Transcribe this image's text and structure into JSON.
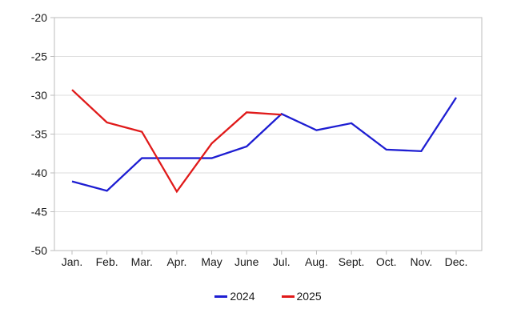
{
  "chart_data": {
    "type": "line",
    "title": "",
    "xlabel": "",
    "ylabel": "",
    "categories": [
      "Jan.",
      "Feb.",
      "Mar.",
      "Apr.",
      "May",
      "June",
      "Jul.",
      "Aug.",
      "Sept.",
      "Oct.",
      "Nov.",
      "Dec."
    ],
    "series": [
      {
        "name": "2024",
        "color": "#1e1ed2",
        "values": [
          -41.1,
          -42.3,
          -38.1,
          -38.1,
          -38.1,
          -36.6,
          -32.4,
          -34.5,
          -33.6,
          -37.0,
          -37.2,
          -30.3
        ]
      },
      {
        "name": "2025",
        "color": "#e01a1a",
        "values": [
          -29.3,
          -33.5,
          -34.7,
          -42.4,
          -36.2,
          -32.2,
          -32.5
        ]
      }
    ],
    "ylim": [
      -50,
      -20
    ],
    "y_ticks": [
      -20,
      -25,
      -30,
      -35,
      -40,
      -45,
      -50
    ],
    "y_tick_labels": [
      "-20",
      "-25",
      "-30",
      "-35",
      "-40",
      "-45",
      "-50"
    ],
    "grid": "horizontal",
    "legend_position": "bottom"
  },
  "colors": {
    "background": "#ffffff",
    "axis_border": "#bdbdbd",
    "gridline": "#dedede",
    "tick": "#bdbdbd",
    "text": "#1a1a1a"
  }
}
